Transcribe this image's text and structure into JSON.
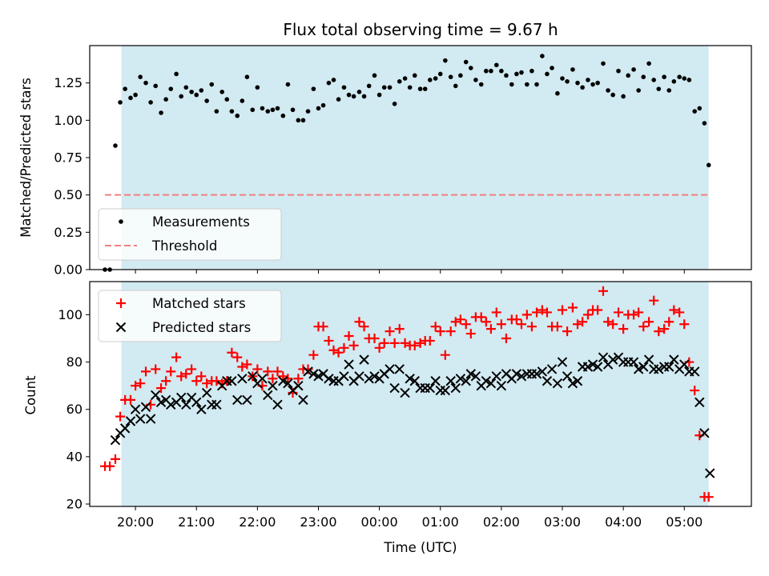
{
  "chart_data": [
    {
      "type": "scatter",
      "title": "Flux total observing time = 9.67 h",
      "xlabel": "",
      "ylabel": "Matched/Predicted stars",
      "xlim": [
        -0.75,
        10.1
      ],
      "ylim": [
        0,
        1.5
      ],
      "yticks": [
        "0.00",
        "0.25",
        "0.50",
        "0.75",
        "1.00",
        "1.25"
      ],
      "observing_window": [
        -0.23,
        9.4
      ],
      "shade_color": "#add8e6",
      "legend": {
        "placement": "lower-left",
        "entries": [
          "Measurements",
          "Threshold"
        ]
      },
      "series": [
        {
          "name": "Measurements",
          "marker": "dot",
          "color": "#000000",
          "x": [
            -0.5,
            -0.42,
            -0.33,
            -0.25,
            -0.17,
            -0.08,
            0.0,
            0.08,
            0.17,
            0.25,
            0.33,
            0.42,
            0.5,
            0.58,
            0.67,
            0.75,
            0.83,
            0.92,
            1.0,
            1.08,
            1.17,
            1.25,
            1.33,
            1.42,
            1.5,
            1.58,
            1.67,
            1.75,
            1.83,
            1.92,
            2.0,
            2.08,
            2.17,
            2.25,
            2.33,
            2.42,
            2.5,
            2.58,
            2.67,
            2.75,
            2.83,
            2.92,
            3.0,
            3.08,
            3.17,
            3.25,
            3.33,
            3.42,
            3.5,
            3.58,
            3.67,
            3.75,
            3.83,
            3.92,
            4.0,
            4.08,
            4.17,
            4.25,
            4.33,
            4.42,
            4.5,
            4.58,
            4.67,
            4.75,
            4.83,
            4.92,
            5.0,
            5.08,
            5.17,
            5.25,
            5.33,
            5.42,
            5.5,
            5.58,
            5.67,
            5.75,
            5.83,
            5.92,
            6.0,
            6.08,
            6.17,
            6.25,
            6.33,
            6.42,
            6.5,
            6.58,
            6.67,
            6.75,
            6.83,
            6.92,
            7.0,
            7.08,
            7.17,
            7.25,
            7.33,
            7.42,
            7.5,
            7.58,
            7.67,
            7.75,
            7.83,
            7.92,
            8.0,
            8.08,
            8.17,
            8.25,
            8.33,
            8.42,
            8.5,
            8.58,
            8.67,
            8.75,
            8.83,
            8.92,
            9.0,
            9.08,
            9.17,
            9.25,
            9.33,
            9.4
          ],
          "y": [
            0.0,
            0.0,
            0.83,
            1.12,
            1.21,
            1.15,
            1.17,
            1.29,
            1.25,
            1.12,
            1.23,
            1.05,
            1.14,
            1.21,
            1.31,
            1.16,
            1.22,
            1.19,
            1.17,
            1.2,
            1.13,
            1.24,
            1.06,
            1.19,
            1.14,
            1.06,
            1.03,
            1.13,
            1.29,
            1.07,
            1.22,
            1.08,
            1.06,
            1.07,
            1.08,
            1.03,
            1.24,
            1.07,
            1.0,
            1.0,
            1.06,
            1.21,
            1.08,
            1.1,
            1.25,
            1.27,
            1.14,
            1.22,
            1.17,
            1.16,
            1.19,
            1.16,
            1.23,
            1.3,
            1.17,
            1.22,
            1.22,
            1.11,
            1.26,
            1.28,
            1.22,
            1.3,
            1.21,
            1.21,
            1.27,
            1.28,
            1.31,
            1.4,
            1.29,
            1.23,
            1.3,
            1.39,
            1.35,
            1.27,
            1.24,
            1.33,
            1.33,
            1.37,
            1.33,
            1.3,
            1.24,
            1.31,
            1.32,
            1.24,
            1.33,
            1.24,
            1.43,
            1.31,
            1.35,
            1.18,
            1.28,
            1.26,
            1.34,
            1.25,
            1.22,
            1.27,
            1.24,
            1.25,
            1.38,
            1.2,
            1.17,
            1.33,
            1.16,
            1.3,
            1.34,
            1.2,
            1.29,
            1.38,
            1.27,
            1.21,
            1.29,
            1.2,
            1.26,
            1.29,
            1.28,
            1.27,
            1.06,
            1.08,
            0.98,
            0.7
          ]
        },
        {
          "name": "Threshold",
          "marker": "dashed-line",
          "color": "#f08080",
          "x": [
            -0.5,
            9.4
          ],
          "y": [
            0.5,
            0.5
          ]
        }
      ]
    },
    {
      "type": "scatter",
      "title": "",
      "xlabel": "Time (UTC)",
      "ylabel": "Count",
      "xlim": [
        -0.75,
        10.1
      ],
      "ylim": [
        19,
        114
      ],
      "xticks": [
        "20:00",
        "21:00",
        "22:00",
        "23:00",
        "00:00",
        "01:00",
        "02:00",
        "03:00",
        "04:00",
        "05:00"
      ],
      "yticks": [
        "20",
        "40",
        "60",
        "80",
        "100"
      ],
      "observing_window": [
        -0.23,
        9.4
      ],
      "shade_color": "#add8e6",
      "legend": {
        "placement": "top-left",
        "entries": [
          "Matched stars",
          "Predicted stars"
        ]
      },
      "series": [
        {
          "name": "Matched stars",
          "marker": "plus",
          "color": "#ff0000",
          "x": [
            -0.5,
            -0.42,
            -0.33,
            -0.25,
            -0.17,
            -0.08,
            0.0,
            0.08,
            0.17,
            0.25,
            0.33,
            0.42,
            0.5,
            0.58,
            0.67,
            0.75,
            0.83,
            0.92,
            1.0,
            1.08,
            1.17,
            1.25,
            1.33,
            1.42,
            1.5,
            1.58,
            1.67,
            1.75,
            1.83,
            1.92,
            2.0,
            2.08,
            2.17,
            2.25,
            2.33,
            2.42,
            2.5,
            2.58,
            2.67,
            2.75,
            2.83,
            2.92,
            3.0,
            3.08,
            3.17,
            3.25,
            3.33,
            3.42,
            3.5,
            3.58,
            3.67,
            3.75,
            3.83,
            3.92,
            4.0,
            4.08,
            4.17,
            4.25,
            4.33,
            4.42,
            4.5,
            4.58,
            4.67,
            4.75,
            4.83,
            4.92,
            5.0,
            5.08,
            5.17,
            5.25,
            5.33,
            5.42,
            5.5,
            5.58,
            5.67,
            5.75,
            5.83,
            5.92,
            6.0,
            6.08,
            6.17,
            6.25,
            6.33,
            6.42,
            6.5,
            6.58,
            6.67,
            6.75,
            6.83,
            6.92,
            7.0,
            7.08,
            7.17,
            7.25,
            7.33,
            7.42,
            7.5,
            7.58,
            7.67,
            7.75,
            7.83,
            7.92,
            8.0,
            8.08,
            8.17,
            8.25,
            8.33,
            8.42,
            8.5,
            8.58,
            8.67,
            8.75,
            8.83,
            8.92,
            9.0,
            9.08,
            9.17,
            9.25,
            9.33,
            9.4
          ],
          "y": [
            36,
            36,
            39,
            57,
            64,
            64,
            70,
            71,
            76,
            62,
            77,
            69,
            72,
            76,
            82,
            74,
            75,
            77,
            72,
            74,
            71,
            72,
            72,
            71,
            72,
            84,
            82,
            78,
            79,
            74,
            77,
            70,
            76,
            73,
            76,
            74,
            73,
            67,
            73,
            77,
            77,
            83,
            95,
            95,
            89,
            85,
            84,
            86,
            91,
            87,
            97,
            95,
            90,
            90,
            86,
            88,
            93,
            88,
            94,
            88,
            87,
            87,
            88,
            89,
            89,
            95,
            93,
            83,
            93,
            97,
            98,
            96,
            92,
            99,
            99,
            97,
            94,
            101,
            96,
            90,
            98,
            98,
            96,
            100,
            95,
            101,
            102,
            101,
            95,
            95,
            102,
            93,
            103,
            96,
            97,
            100,
            102,
            102,
            110,
            97,
            96,
            101,
            94,
            100,
            100,
            101,
            95,
            97,
            106,
            93,
            94,
            97,
            102,
            101,
            96,
            80,
            68,
            49,
            23,
            23
          ]
        },
        {
          "name": "Predicted stars",
          "marker": "x",
          "color": "#000000",
          "x": [
            -0.33,
            -0.25,
            -0.17,
            -0.08,
            0.0,
            0.08,
            0.17,
            0.25,
            0.33,
            0.42,
            0.5,
            0.58,
            0.67,
            0.75,
            0.83,
            0.92,
            1.0,
            1.08,
            1.17,
            1.25,
            1.33,
            1.42,
            1.5,
            1.58,
            1.67,
            1.75,
            1.83,
            1.92,
            2.0,
            2.08,
            2.17,
            2.25,
            2.33,
            2.42,
            2.5,
            2.58,
            2.67,
            2.75,
            2.83,
            2.92,
            3.0,
            3.08,
            3.17,
            3.25,
            3.33,
            3.42,
            3.5,
            3.58,
            3.67,
            3.75,
            3.83,
            3.92,
            4.0,
            4.08,
            4.17,
            4.25,
            4.33,
            4.42,
            4.5,
            4.58,
            4.67,
            4.75,
            4.83,
            4.92,
            5.0,
            5.08,
            5.17,
            5.25,
            5.33,
            5.42,
            5.5,
            5.58,
            5.67,
            5.75,
            5.83,
            5.92,
            6.0,
            6.08,
            6.17,
            6.25,
            6.33,
            6.42,
            6.5,
            6.58,
            6.67,
            6.75,
            6.83,
            6.92,
            7.0,
            7.08,
            7.17,
            7.25,
            7.33,
            7.42,
            7.5,
            7.58,
            7.67,
            7.75,
            7.83,
            7.92,
            8.0,
            8.08,
            8.17,
            8.25,
            8.33,
            8.42,
            8.5,
            8.58,
            8.67,
            8.75,
            8.83,
            8.92,
            9.0,
            9.08,
            9.17,
            9.25,
            9.33,
            9.42
          ],
          "y": [
            47,
            50,
            52,
            55,
            60,
            56,
            61,
            56,
            66,
            63,
            64,
            62,
            63,
            65,
            62,
            65,
            63,
            60,
            67,
            62,
            62,
            70,
            72,
            72,
            64,
            73,
            64,
            74,
            71,
            73,
            66,
            70,
            62,
            72,
            71,
            68,
            70,
            64,
            76,
            75,
            74,
            75,
            73,
            72,
            72,
            74,
            79,
            72,
            74,
            81,
            73,
            74,
            73,
            75,
            77,
            69,
            77,
            67,
            73,
            72,
            69,
            69,
            69,
            72,
            68,
            68,
            72,
            69,
            73,
            72,
            75,
            74,
            70,
            72,
            71,
            74,
            70,
            75,
            73,
            75,
            74,
            75,
            75,
            75,
            76,
            72,
            77,
            71,
            80,
            74,
            71,
            72,
            78,
            78,
            79,
            78,
            82,
            79,
            81,
            82,
            80,
            80,
            80,
            77,
            78,
            81,
            77,
            77,
            78,
            78,
            81,
            77,
            79,
            76,
            76,
            63,
            50,
            33
          ]
        }
      ]
    }
  ]
}
